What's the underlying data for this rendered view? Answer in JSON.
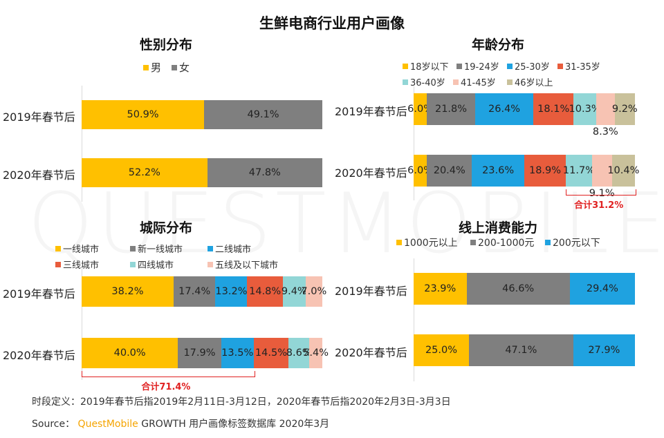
{
  "title": "生鲜电商行业用户画像",
  "watermark": "QUESTMOBILE",
  "colors": {
    "yellow": "#ffc000",
    "gray": "#7f7f7f",
    "blue": "#1fa2e0",
    "orange": "#e85c3c",
    "teal": "#92d6d6",
    "pink": "#f7c3b3",
    "khaki": "#c9c19b",
    "red_note": "#e02020"
  },
  "chart_data": [
    {
      "type": "bar",
      "orientation": "horizontal-stacked-100",
      "title": "性别分布",
      "categories": [
        "2019年春节后",
        "2020年春节后"
      ],
      "series": [
        {
          "name": "男",
          "values": [
            50.9,
            52.2
          ],
          "color": "yellow"
        },
        {
          "name": "女",
          "values": [
            49.1,
            47.8
          ],
          "color": "gray"
        }
      ]
    },
    {
      "type": "bar",
      "orientation": "horizontal-stacked-100",
      "title": "年龄分布",
      "categories": [
        "2019年春节后",
        "2020年春节后"
      ],
      "series": [
        {
          "name": "18岁以下",
          "values": [
            6.0,
            6.0
          ],
          "color": "yellow"
        },
        {
          "name": "19-24岁",
          "values": [
            21.8,
            20.4
          ],
          "color": "gray"
        },
        {
          "name": "25-30岁",
          "values": [
            26.4,
            23.6
          ],
          "color": "blue"
        },
        {
          "name": "31-35岁",
          "values": [
            18.1,
            18.9
          ],
          "color": "orange"
        },
        {
          "name": "36-40岁",
          "values": [
            10.3,
            11.7
          ],
          "color": "teal"
        },
        {
          "name": "41-45岁",
          "values": [
            8.3,
            9.1
          ],
          "color": "pink"
        },
        {
          "name": "46岁以上",
          "values": [
            9.2,
            10.4
          ],
          "color": "khaki"
        }
      ],
      "annotation": {
        "text": "合计31.2%",
        "row": 1,
        "from_series": 4,
        "to_series": 6
      }
    },
    {
      "type": "bar",
      "orientation": "horizontal-stacked-100",
      "title": "城际分布",
      "categories": [
        "2019年春节后",
        "2020年春节后"
      ],
      "series": [
        {
          "name": "一线城市",
          "values": [
            38.2,
            40.0
          ],
          "color": "yellow"
        },
        {
          "name": "新一线城市",
          "values": [
            17.4,
            17.9
          ],
          "color": "gray"
        },
        {
          "name": "二线城市",
          "values": [
            13.2,
            13.5
          ],
          "color": "blue"
        },
        {
          "name": "三线城市",
          "values": [
            14.8,
            14.5
          ],
          "color": "orange"
        },
        {
          "name": "四线城市",
          "values": [
            9.4,
            8.6
          ],
          "color": "teal"
        },
        {
          "name": "五线及以下城市",
          "values": [
            7.0,
            5.4
          ],
          "color": "pink"
        }
      ],
      "annotation": {
        "text": "合计71.4%",
        "row": 1,
        "from_series": 0,
        "to_series": 2
      }
    },
    {
      "type": "bar",
      "orientation": "horizontal-stacked-100",
      "title": "线上消费能力",
      "categories": [
        "2019年春节后",
        "2020年春节后"
      ],
      "series": [
        {
          "name": "1000元以上",
          "values": [
            23.9,
            25.0
          ],
          "color": "yellow"
        },
        {
          "name": "200-1000元",
          "values": [
            46.6,
            47.1
          ],
          "color": "gray"
        },
        {
          "name": "200元以下",
          "values": [
            29.4,
            27.9
          ],
          "color": "blue"
        }
      ]
    }
  ],
  "footer": {
    "definition": "时段定义：2019年春节后指2019年2月11日-3月12日，2020年春节后指2020年2月3日-3月3日",
    "source_label": "Source：",
    "brand": "QuestMobile",
    "source_rest": "GROWTH 用户画像标签数据库 2020年3月"
  }
}
